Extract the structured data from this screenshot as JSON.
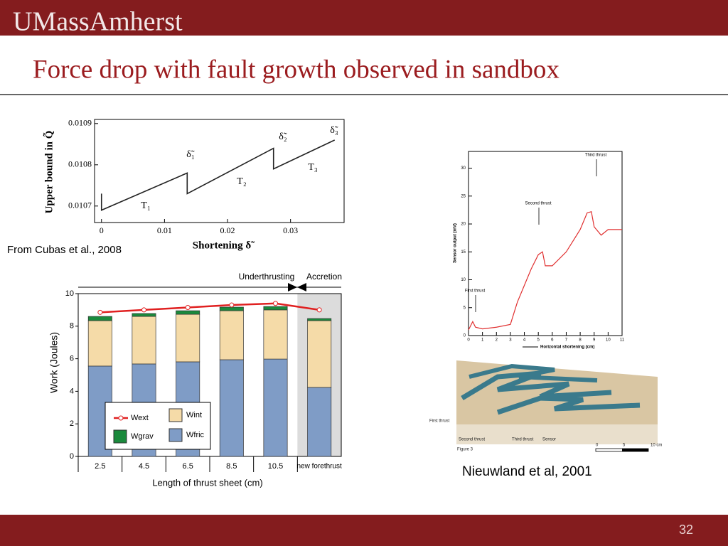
{
  "header": {
    "logo": "UMassAmherst"
  },
  "title": "Force drop with fault growth observed in sandbox",
  "chart_data": [
    {
      "type": "line",
      "x": [
        0,
        0,
        0.0136,
        0.0136,
        0.0273,
        0.0273,
        0.037
      ],
      "series": [
        {
          "color": "#222222",
          "values": [
            0.01073,
            0.01069,
            0.01078,
            0.01073,
            0.01084,
            0.01079,
            0.01086
          ]
        }
      ],
      "xlim": [
        -0.0011,
        0.0385
      ],
      "ylim": [
        0.01066,
        0.01091
      ],
      "xticks": [
        0,
        0.01,
        0.02,
        0.03
      ],
      "yticks": [
        0.0107,
        0.0108,
        0.0109
      ],
      "x_label": "Shortening δ̃",
      "y_label": "Upper bound in Q̃",
      "annotations": [
        "T₁",
        "T₂",
        "T₃",
        "δ̃₁",
        "δ̃₂",
        "δ̃₃"
      ]
    },
    {
      "type": "bar",
      "categories": [
        "2.5",
        "4.5",
        "6.5",
        "8.5",
        "10.5",
        "new forethrust"
      ],
      "series": [
        {
          "name": "Wfric",
          "color": "#7f9cc6",
          "values": [
            5.55,
            5.68,
            5.81,
            5.94,
            5.98,
            4.24
          ]
        },
        {
          "name": "Wint",
          "color": "#f5dba8",
          "values": [
            2.79,
            2.92,
            2.92,
            3.01,
            3.02,
            4.1
          ]
        },
        {
          "name": "Wgrav",
          "color": "#1a8a3c",
          "values": [
            0.26,
            0.18,
            0.22,
            0.22,
            0.21,
            0.13
          ]
        },
        {
          "name": "Wext",
          "color": "#e02020",
          "type": "line",
          "values": [
            8.85,
            9.0,
            9.15,
            9.3,
            9.4,
            9.0
          ]
        }
      ],
      "ylim": [
        0,
        10
      ],
      "yticks": [
        0,
        2,
        4,
        6,
        8,
        10
      ],
      "x_label": "Length of thrust sheet (cm)",
      "y_label": "Work (Joules)",
      "annotations": [
        "Underthrusting",
        "Accretion"
      ],
      "legend": "lower left"
    },
    {
      "type": "line",
      "x": [
        0,
        0.3,
        0.5,
        1,
        2,
        3,
        3.5,
        4,
        4.5,
        5,
        5.3,
        5.5,
        6,
        7,
        7.5,
        8,
        8.5,
        8.8,
        9,
        9.5,
        10,
        11
      ],
      "series": [
        {
          "color": "#e03030",
          "values": [
            1,
            2.5,
            1.5,
            1.2,
            1.5,
            2,
            6,
            9,
            12,
            14.5,
            15,
            12.5,
            12.5,
            15,
            17,
            19,
            22,
            22.2,
            19.5,
            18,
            19,
            19
          ]
        }
      ],
      "xlim": [
        0,
        11
      ],
      "ylim": [
        0,
        33
      ],
      "xticks": [
        0,
        1,
        2,
        3,
        4,
        5,
        6,
        7,
        8,
        9,
        10,
        11
      ],
      "yticks": [
        0,
        5,
        10,
        15,
        20,
        25,
        30
      ],
      "x_label": "Horizontal shortening (cm)",
      "y_label": "Sensor output (mV)",
      "annotations": [
        "First thrust",
        "Second thrust",
        "Third thrust"
      ]
    }
  ],
  "photo": {
    "labels": [
      "First thrust",
      "Second thrust",
      "Third thrust",
      "Sensor",
      "Figure 3",
      "0",
      "5",
      "10 cm"
    ]
  },
  "captions": [
    "From Cubas et al., 2008",
    "Nieuwland et al, 2001"
  ],
  "page_number": "32"
}
